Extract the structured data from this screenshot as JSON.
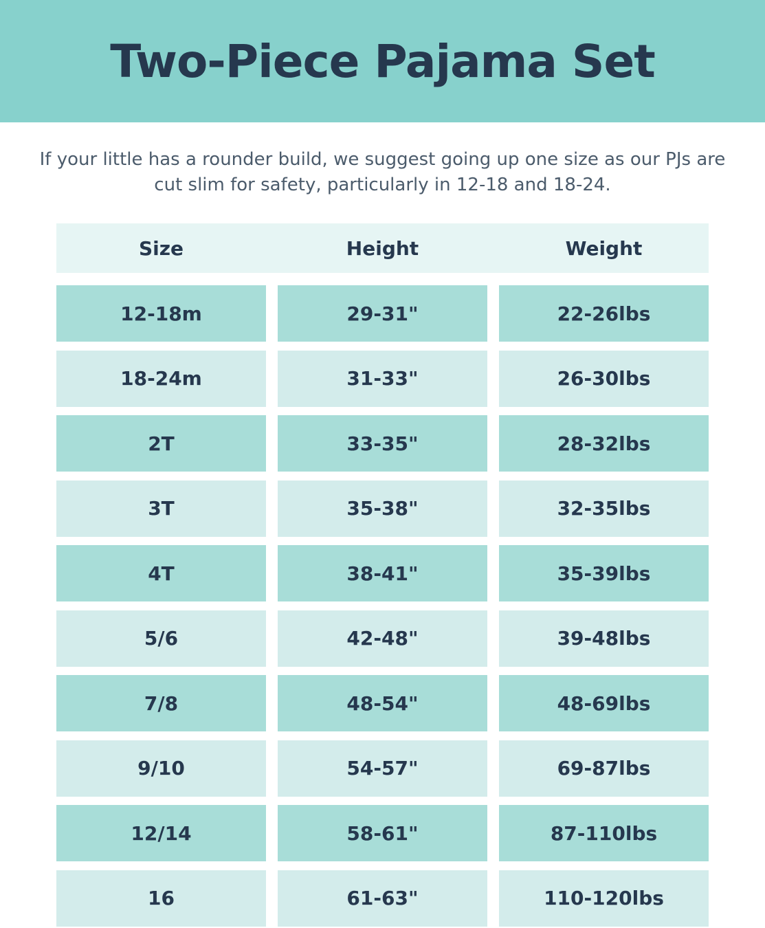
{
  "title": "Two-Piece Pajama Set",
  "intro": "If your little has a rounder build, we suggest going up one size as our PJs are cut slim for safety, particularly in 12-18 and 18-24.",
  "colors": {
    "banner": "#87d1cc",
    "text": "#26384e",
    "row_dark": "#a8ddd8",
    "row_light": "#d3eceb",
    "header_row": "#e6f5f4"
  },
  "table": {
    "headers": [
      "Size",
      "Height",
      "Weight"
    ],
    "rows": [
      [
        "12-18m",
        "29-31\"",
        "22-26lbs"
      ],
      [
        "18-24m",
        "31-33\"",
        "26-30lbs"
      ],
      [
        "2T",
        "33-35\"",
        "28-32lbs"
      ],
      [
        "3T",
        "35-38\"",
        "32-35lbs"
      ],
      [
        "4T",
        "38-41\"",
        "35-39lbs"
      ],
      [
        "5/6",
        "42-48\"",
        "39-48lbs"
      ],
      [
        "7/8",
        "48-54\"",
        "48-69lbs"
      ],
      [
        "9/10",
        "54-57\"",
        "69-87lbs"
      ],
      [
        "12/14",
        "58-61\"",
        "87-110lbs"
      ],
      [
        "16",
        "61-63\"",
        "110-120lbs"
      ]
    ]
  }
}
